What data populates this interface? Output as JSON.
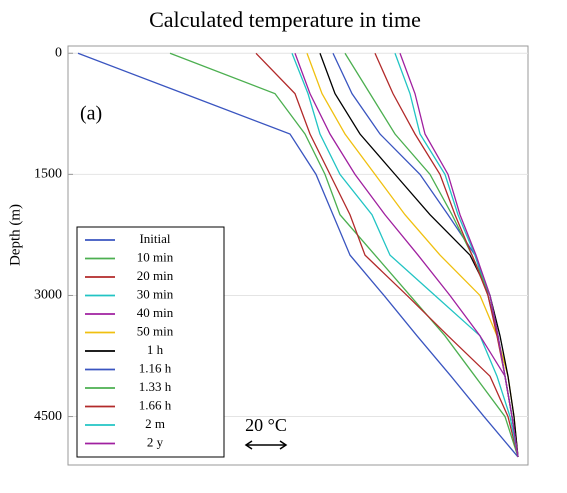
{
  "chart_data": {
    "type": "line",
    "title": "Calculated temperature in time",
    "y_label": "Depth (m)",
    "annotation": "(a)",
    "scale_bar": "20 °C",
    "invert_y": true,
    "grid": true,
    "y": [
      0,
      500,
      1000,
      1500,
      2000,
      2500,
      3000,
      3500,
      4000,
      4500,
      5000
    ],
    "xlim": [
      0,
      230
    ],
    "ylim": [
      -90,
      5100
    ],
    "yticks": [
      0,
      1500,
      3000,
      4500
    ],
    "series": [
      {
        "name": "Initial",
        "color": "#3a55c0",
        "values": [
          5,
          58,
          111,
          124,
          132.5,
          141,
          158,
          174.5,
          191.5,
          208,
          225
        ]
      },
      {
        "name": "10 min",
        "color": "#4caf50",
        "values": [
          51,
          103.5,
          118.5,
          128.5,
          136,
          153.5,
          171,
          188.5,
          203.5,
          218.5,
          225
        ]
      },
      {
        "name": "20 min",
        "color": "#b22a2a",
        "values": [
          94,
          113.5,
          121,
          131,
          141,
          148.5,
          169.5,
          190,
          211,
          220,
          225
        ]
      },
      {
        "name": "30 min",
        "color": "#22c4c4",
        "values": [
          112,
          120,
          126,
          136,
          152,
          161,
          183.5,
          206,
          214.5,
          221,
          225
        ]
      },
      {
        "name": "40 min",
        "color": "#a020a0",
        "values": [
          113.5,
          121,
          131,
          143.5,
          158.5,
          175,
          191,
          206,
          218.5,
          222,
          225
        ]
      },
      {
        "name": "50 min",
        "color": "#f0c010",
        "values": [
          119.5,
          127,
          138.5,
          153.5,
          168.5,
          186,
          206,
          214.5,
          220,
          223,
          225
        ]
      },
      {
        "name": "1 h",
        "color": "#000000",
        "values": [
          126,
          133.5,
          146,
          163.5,
          181,
          201,
          211,
          216,
          220,
          223,
          225
        ]
      },
      {
        "name": "1.16 h",
        "color": "#3a55c0",
        "values": [
          132.5,
          142,
          156,
          176,
          190,
          203.5,
          210,
          215,
          218.5,
          222,
          225
        ]
      },
      {
        "name": "1.33 h",
        "color": "#4caf50",
        "values": [
          138.5,
          151,
          163.5,
          181,
          192,
          202,
          211,
          215,
          218.5,
          222,
          225
        ]
      },
      {
        "name": "1.66 h",
        "color": "#b22a2a",
        "values": [
          153.5,
          162.5,
          173.5,
          186,
          193.5,
          202,
          210,
          214.5,
          218.5,
          222,
          225
        ]
      },
      {
        "name": "2 m",
        "color": "#22c4c4",
        "values": [
          163.5,
          171,
          176,
          188.5,
          195,
          203.5,
          211,
          215,
          218.5,
          222,
          225
        ]
      },
      {
        "name": "2 y",
        "color": "#a020a0",
        "values": [
          166,
          173.5,
          178.5,
          190,
          196,
          204,
          211,
          215,
          218.5,
          222,
          225
        ]
      }
    ]
  }
}
